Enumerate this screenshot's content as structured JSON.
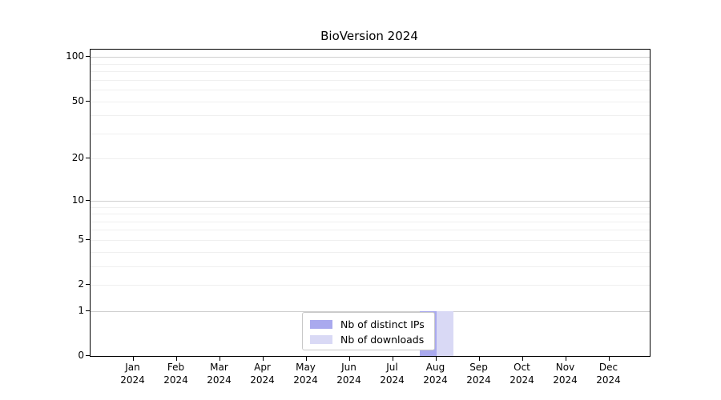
{
  "chart_data": {
    "type": "bar",
    "title": "BioVersion 2024",
    "categories": [
      "Jan 2024",
      "Feb 2024",
      "Mar 2024",
      "Apr 2024",
      "May 2024",
      "Jun 2024",
      "Jul 2024",
      "Aug 2024",
      "Sep 2024",
      "Oct 2024",
      "Nov 2024",
      "Dec 2024"
    ],
    "series": [
      {
        "name": "Nb of distinct IPs",
        "color": "#a9a9ee",
        "values": [
          0,
          0,
          0,
          0,
          0,
          0,
          0,
          1,
          0,
          0,
          0,
          0
        ]
      },
      {
        "name": "Nb of downloads",
        "color": "#d9d9f5",
        "values": [
          0,
          0,
          0,
          0,
          0,
          0,
          0,
          1,
          0,
          0,
          0,
          0
        ]
      }
    ],
    "xlabel": "",
    "ylabel": "",
    "yscale": "log1p",
    "yticks": [
      0,
      1,
      2,
      5,
      10,
      20,
      50,
      100
    ],
    "ylim": [
      0,
      112
    ],
    "grid": "horizontal, major at powers of 10, faint minors",
    "legend_position": "lower center"
  }
}
